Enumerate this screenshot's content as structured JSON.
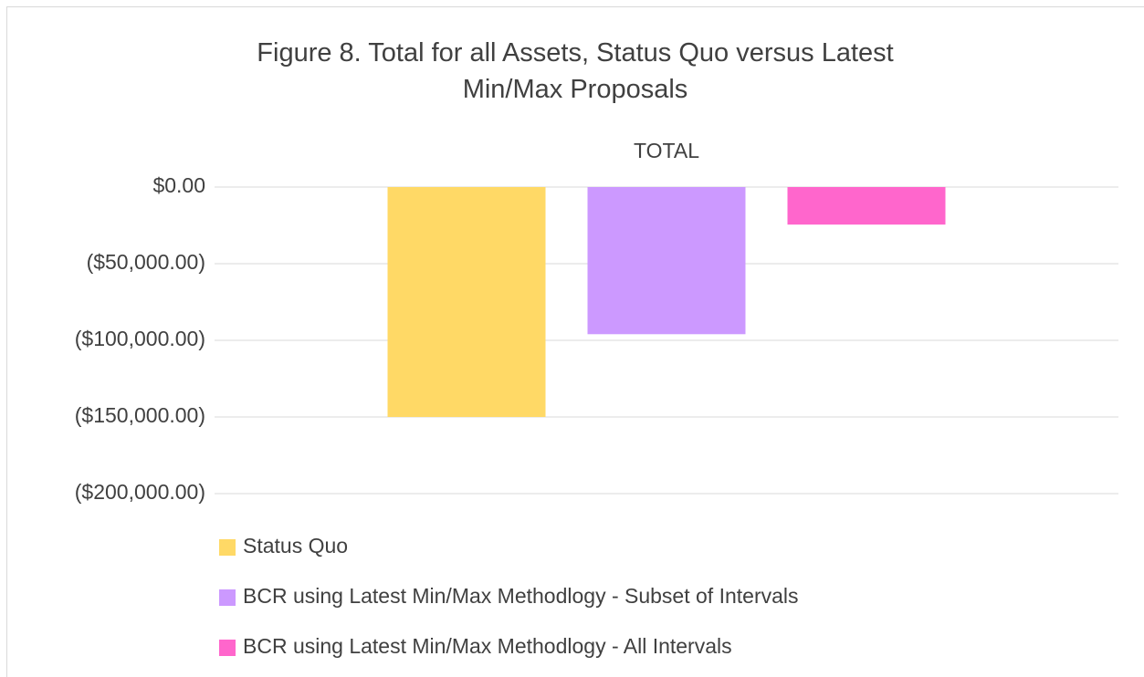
{
  "chart_data": {
    "type": "bar",
    "title": "Figure 8. Total for all Assets, Status Quo versus Latest Min/Max Proposals",
    "categories": [
      "TOTAL"
    ],
    "series": [
      {
        "name": "Status Quo",
        "color": "#ffd966",
        "values": [
          -150000
        ]
      },
      {
        "name": "BCR using Latest Min/Max Methodlogy - Subset of Intervals",
        "color": "#cc99ff",
        "values": [
          -96000
        ]
      },
      {
        "name": "BCR using Latest Min/Max Methodlogy - All Intervals",
        "color": "#ff66cc",
        "values": [
          -24500
        ]
      }
    ],
    "ylim": [
      -200000,
      0
    ],
    "yticks": [
      {
        "value": 0,
        "label": "$0.00"
      },
      {
        "value": -50000,
        "label": "($50,000.00)"
      },
      {
        "value": -100000,
        "label": "($100,000.00)"
      },
      {
        "value": -150000,
        "label": "($150,000.00)"
      },
      {
        "value": -200000,
        "label": "($200,000.00)"
      }
    ],
    "negative_tick_color": "#ff0000",
    "grid": true,
    "legend": "bottom"
  }
}
